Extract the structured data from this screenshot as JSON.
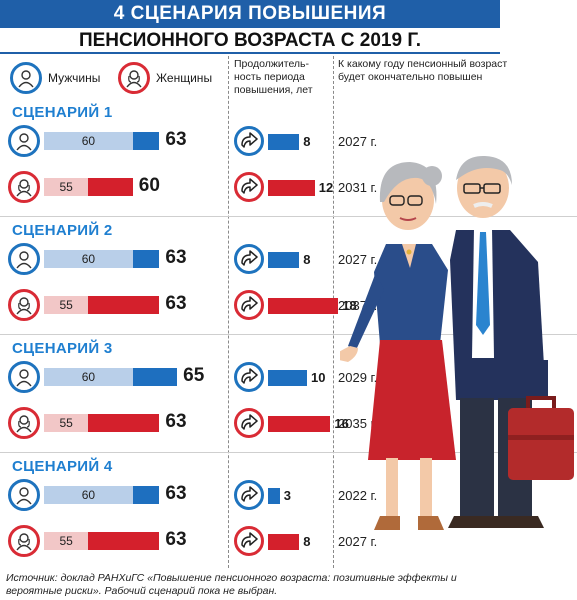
{
  "header": {
    "title": "4 СЦЕНАРИЯ ПОВЫШЕНИЯ",
    "subtitle": "ПЕНСИОННОГО ВОЗРАСТА С 2019 Г."
  },
  "legend": {
    "male": "Мужчины",
    "female": "Женщины"
  },
  "columns": {
    "duration": "Продолжитель-ность периода повышения, лет",
    "final_year": "К какому году пенсионный возраст будет окончательно повышен"
  },
  "colors": {
    "accent": "#1f5fa8",
    "male": "#1e6fbf",
    "male_light": "#b9cfe9",
    "female": "#d4202c",
    "female_light": "#f2c7c7",
    "scenario_title": "#1f7fd0"
  },
  "chart_data": {
    "type": "bar",
    "scenarios": [
      {
        "name": "СЦЕНАРИЙ 1",
        "male": {
          "current_age": 60,
          "new_age": 63,
          "years": 8,
          "year": "2027 г."
        },
        "female": {
          "current_age": 55,
          "new_age": 60,
          "years": 12,
          "year": "2031 г."
        }
      },
      {
        "name": "СЦЕНАРИЙ 2",
        "male": {
          "current_age": 60,
          "new_age": 63,
          "years": 8,
          "year": "2027 г."
        },
        "female": {
          "current_age": 55,
          "new_age": 63,
          "years": 18,
          "year": "2037 г."
        }
      },
      {
        "name": "СЦЕНАРИЙ 3",
        "male": {
          "current_age": 60,
          "new_age": 65,
          "years": 10,
          "year": "2029 г."
        },
        "female": {
          "current_age": 55,
          "new_age": 63,
          "years": 16,
          "year": "2035 г."
        }
      },
      {
        "name": "СЦЕНАРИЙ 4",
        "male": {
          "current_age": 60,
          "new_age": 63,
          "years": 3,
          "year": "2022 г."
        },
        "female": {
          "current_age": 55,
          "new_age": 63,
          "years": 8,
          "year": "2027 г."
        }
      }
    ]
  },
  "source": "Источник: доклад РАНХиГС «Повышение пенсионного возраста: позитивные эффекты и вероятные риски». Рабочий сценарий пока не выбран."
}
